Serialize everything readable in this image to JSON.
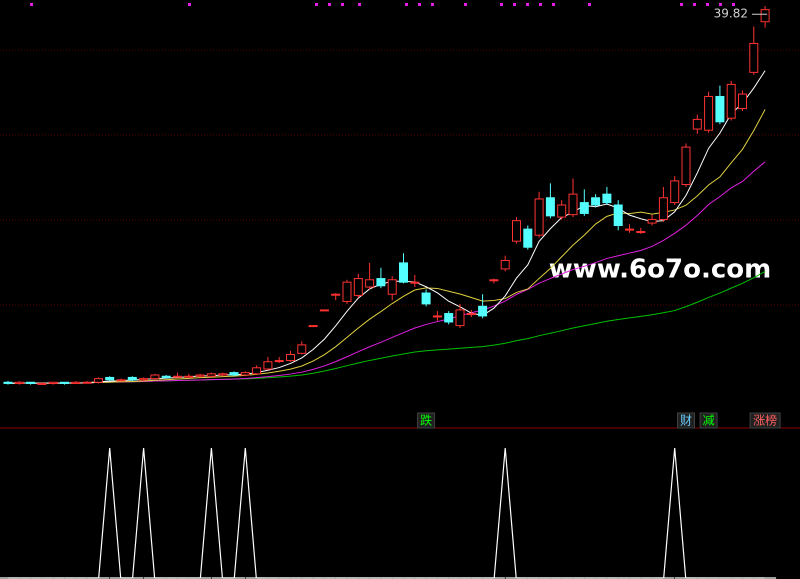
{
  "chart_data": {
    "type": "candlestick",
    "ylim": [
      7,
      41
    ],
    "up_color": "#ff3232",
    "down_color": "#54ffff",
    "open": [
      9.3,
      9.2,
      9.3,
      9.2,
      9.2,
      9.3,
      9.2,
      9.3,
      9.3,
      9.7,
      9.5,
      9.7,
      9.5,
      9.6,
      9.8,
      9.8,
      9.8,
      9.8,
      9.8,
      9.9,
      10.1,
      9.9,
      10.0,
      10.4,
      11.1,
      11.1,
      11.7,
      14.0,
      15.3,
      16.6,
      16.0,
      16.5,
      17.2,
      17.9,
      16.6,
      19.2,
      17.6,
      16.7,
      14.8,
      15.0,
      14.0,
      15.0,
      15.6,
      17.8,
      18.7,
      21.0,
      22.0,
      21.5,
      24.6,
      23.0,
      23.2,
      24.2,
      24.6,
      24.9,
      24.0,
      22.0,
      21.8,
      22.5,
      22.8,
      24.2,
      25.7,
      30.3,
      30.2,
      33.0,
      31.2,
      32.0,
      35.0,
      39.2
    ],
    "high": [
      9.4,
      9.4,
      9.3,
      9.3,
      9.3,
      9.3,
      9.4,
      9.4,
      9.7,
      9.8,
      9.6,
      9.8,
      9.7,
      10.0,
      9.9,
      10.1,
      10.0,
      10.0,
      10.1,
      10.1,
      10.2,
      10.2,
      10.7,
      11.4,
      11.4,
      11.9,
      12.7,
      14.0,
      15.3,
      16.7,
      17.8,
      18.3,
      19.2,
      18.8,
      18.1,
      20.0,
      18.2,
      17.0,
      15.2,
      15.2,
      15.8,
      15.3,
      16.6,
      17.9,
      19.8,
      23.0,
      22.3,
      25.1,
      25.8,
      24.4,
      26.2,
      25.3,
      24.9,
      25.5,
      24.4,
      22.4,
      22.1,
      23.2,
      25.5,
      26.4,
      29.1,
      31.5,
      33.4,
      33.9,
      34.3,
      33.5,
      38.8,
      40.5
    ],
    "low": [
      9.1,
      9.1,
      9.1,
      9.1,
      9.1,
      9.1,
      9.2,
      9.2,
      9.2,
      9.4,
      9.4,
      9.4,
      9.4,
      9.5,
      9.6,
      9.7,
      9.7,
      9.7,
      9.7,
      9.8,
      9.8,
      9.8,
      9.9,
      10.3,
      10.9,
      11.0,
      11.6,
      14.0,
      15.3,
      16.1,
      15.8,
      16.3,
      17.0,
      17.1,
      16.1,
      17.5,
      17.2,
      15.6,
      14.4,
      14.1,
      13.8,
      14.7,
      14.6,
      17.5,
      18.5,
      20.8,
      20.3,
      21.3,
      22.9,
      22.8,
      23.0,
      23.1,
      23.8,
      24.0,
      21.9,
      21.7,
      21.6,
      22.3,
      22.6,
      24.0,
      25.5,
      29.9,
      30.0,
      30.7,
      31.0,
      31.8,
      34.8,
      38.7
    ],
    "close": [
      9.2,
      9.3,
      9.2,
      9.2,
      9.3,
      9.2,
      9.3,
      9.3,
      9.6,
      9.5,
      9.5,
      9.5,
      9.6,
      9.9,
      9.7,
      9.8,
      9.8,
      9.9,
      10.0,
      10.0,
      9.9,
      10.1,
      10.5,
      11.0,
      11.1,
      11.6,
      12.4,
      14.0,
      15.3,
      16.6,
      17.6,
      17.9,
      17.8,
      17.3,
      17.8,
      17.6,
      17.6,
      15.8,
      14.8,
      14.3,
      15.3,
      15.0,
      14.8,
      17.8,
      19.4,
      22.7,
      20.5,
      24.5,
      23.1,
      24.0,
      24.9,
      23.3,
      24.0,
      24.2,
      22.3,
      22.0,
      21.8,
      22.8,
      24.6,
      26.0,
      28.8,
      31.1,
      33.0,
      30.9,
      34.0,
      33.2,
      37.4,
      40.2
    ],
    "last_label": 39.82,
    "watermark": "www.6o7o.com",
    "signal": {
      "color": "#ffffff",
      "values": [
        0,
        0,
        0,
        0,
        0,
        0,
        0,
        0,
        0,
        1,
        0,
        0,
        1,
        0,
        0,
        0,
        0,
        0,
        1,
        0,
        0,
        1,
        0,
        0,
        0,
        0,
        0,
        0,
        0,
        0,
        0,
        0,
        0,
        0,
        0,
        0,
        0,
        0,
        0,
        0,
        0,
        0,
        0,
        0,
        1,
        0,
        0,
        0,
        0,
        0,
        0,
        0,
        0,
        0,
        0,
        0,
        0,
        0,
        0,
        1,
        0,
        0,
        0,
        0,
        0,
        0,
        0,
        0
      ]
    },
    "markers": [
      {
        "text": "跌",
        "index": 37,
        "color": "#00ff00"
      },
      {
        "text": "财",
        "index": 60,
        "color": "#66ccff"
      },
      {
        "text": "减",
        "index": 62,
        "color": "#00ff00"
      },
      {
        "text": "涨榜",
        "index": 67,
        "color": "#ff6060"
      }
    ]
  }
}
